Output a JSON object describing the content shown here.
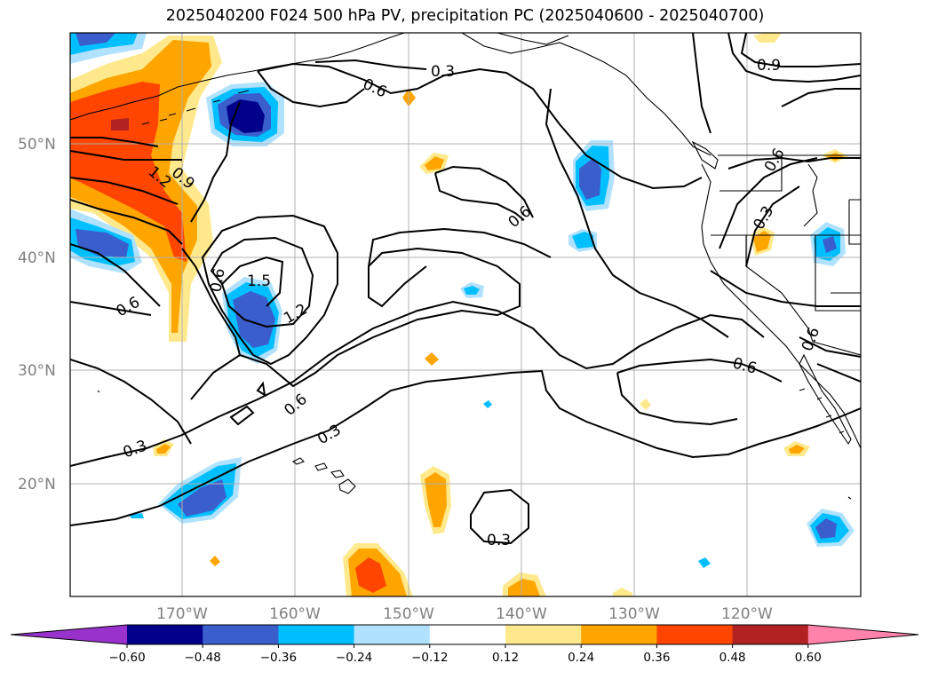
{
  "title": "2025040200 F024 500 hPa PV, precipitation PC (2025040600 - 2025040700)",
  "latitude_labels": [
    "50°N",
    "40°N",
    "30°N",
    "20°N"
  ],
  "longitude_labels": [
    "170°W",
    "160°W",
    "150°W",
    "140°W",
    "130°W",
    "120°W"
  ],
  "pv_contour_labels": [
    "0.3",
    "0.6",
    "0.9",
    "1.2",
    "1.5"
  ],
  "colorbar": {
    "ticks": [
      "−0.60",
      "−0.48",
      "−0.36",
      "−0.24",
      "−0.12",
      "0.12",
      "0.24",
      "0.36",
      "0.48",
      "0.60"
    ],
    "colors": [
      "#9932cc",
      "#00008b",
      "#3a5fcd",
      "#00bfff",
      "#b0e2ff",
      "#ffffff",
      "#ffe98c",
      "#ffa500",
      "#ff4500",
      "#b22222",
      "#ff82ab"
    ]
  }
}
